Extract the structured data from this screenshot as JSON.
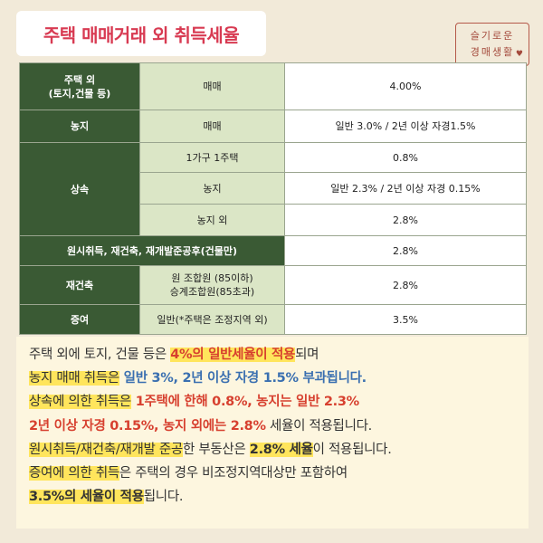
{
  "title": "주택 매매거래 외 취득세율",
  "stamp": {
    "line1": "슬기로운",
    "line2": "경매생활",
    "heart": "♥"
  },
  "table": {
    "r1": {
      "category": "주택 외",
      "category_sub": "(토지,건물 등)",
      "type": "매매",
      "rate": "4.00%"
    },
    "r2": {
      "category": "농지",
      "type": "매매",
      "rate": "일반 3.0% / 2년 이상 자경1.5%"
    },
    "r3": {
      "category": "상속",
      "type": "1가구 1주택",
      "rate": "0.8%"
    },
    "r4": {
      "type": "농지",
      "rate": "일반 2.3% / 2년 이상 자경 0.15%"
    },
    "r5": {
      "type": "농지 외",
      "rate": "2.8%"
    },
    "r6": {
      "category": "원시취득, 재건축, 재개발준공후(건물만)",
      "rate": "2.8%"
    },
    "r7": {
      "category": "재건축",
      "type_line1": "원 조합원 (85이하)",
      "type_line2": "승계조합원(85초과)",
      "rate": "2.8%"
    },
    "r8": {
      "category": "증여",
      "type": "일반(*주택은 조정지역 외)",
      "rate": "3.5%"
    }
  },
  "note": {
    "l1": {
      "a": "주택 외에 토지, 건물 등은 ",
      "b": "4%의 일반세율이 적용",
      "c": "되며"
    },
    "l2": {
      "a": "농지 매매 취득은",
      "b": " 일반 3%, 2년 이상 자경 1.5% 부과됩니다."
    },
    "l3": {
      "a": "상속에 의한 취득은",
      "b": " 1주택에 한해 0.8%, 농지는 일반 2.3%"
    },
    "l4": {
      "a": "2년 이상 자경 0.15%, 농지 외에는 2.8%",
      "b": " 세율이 적용됩니다."
    },
    "l5": {
      "a": "원시취득/재건축/재개발 준공",
      "b": "한 부동산은 ",
      "c": "2.8% 세율",
      "d": "이 적용됩니다."
    },
    "l6": {
      "a": "증여에 의한 취득",
      "b": "은 주택의 경우 비조정지역대상만 포함하여"
    },
    "l7": {
      "a": "3.5%의 세율이 적용",
      "b": "됩니다."
    }
  }
}
